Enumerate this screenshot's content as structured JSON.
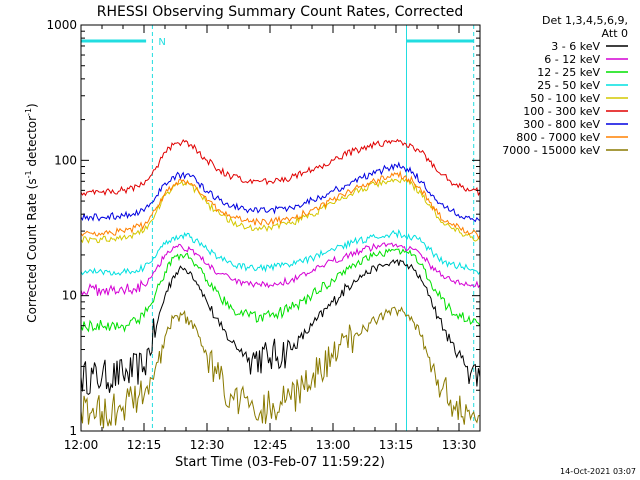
{
  "chart_data": {
    "type": "line",
    "title": "RHESSI Observing Summary Count Rates, Corrected",
    "xlabel": "Start Time (03-Feb-07 11:59:22)",
    "ylabel_main": "Corrected Count Rate (s",
    "ylabel_sup1": "-1",
    "ylabel_mid": " detector",
    "ylabel_sup2": "-1",
    "ylabel_end": ")",
    "yscale": "log",
    "ylim": [
      1,
      1000
    ],
    "xlim": [
      "12:00",
      "13:35"
    ],
    "x_ticks": [
      "12:00",
      "12:15",
      "12:30",
      "12:45",
      "13:00",
      "13:15",
      "13:30"
    ],
    "y_ticks": [
      "1",
      "10",
      "100",
      "1000"
    ],
    "grid": false,
    "legend_header": "Det 1,3,4,5,6,9,",
    "legend_header2": "Att 0",
    "legend_position": "right",
    "annotation_n": "N",
    "timestamp": "14-Oct-2021 03:07",
    "x_minutes": [
      0,
      5,
      10,
      15,
      18,
      20,
      22,
      24,
      26,
      28,
      30,
      33,
      36,
      40,
      45,
      50,
      55,
      60,
      65,
      70,
      73,
      75,
      77,
      79,
      81,
      83,
      85,
      88,
      92,
      95
    ],
    "series": [
      {
        "name": "3 - 6 keV",
        "color": "#000000",
        "values": [
          2.5,
          2.5,
          2.6,
          3,
          6,
          10,
          14,
          16,
          15,
          12,
          9,
          6,
          4.5,
          3.5,
          3.5,
          4,
          6,
          9,
          13,
          16,
          17,
          18,
          17,
          16,
          13,
          10,
          7,
          4.5,
          3,
          2.5
        ]
      },
      {
        "name": "6 - 12 keV",
        "color": "#d400d4",
        "values": [
          11,
          11,
          11,
          12,
          16,
          20,
          23,
          23,
          22,
          20,
          17,
          14.5,
          13,
          12,
          12,
          13,
          15,
          18,
          21,
          23,
          24,
          24,
          23,
          22,
          20,
          17,
          15,
          13,
          12,
          12
        ]
      },
      {
        "name": "12 - 25 keV",
        "color": "#00e000",
        "values": [
          6,
          6,
          6,
          7,
          11,
          15,
          19,
          20,
          19,
          16,
          13,
          10,
          8,
          7,
          7,
          8,
          10,
          13,
          17,
          20,
          21,
          22,
          21,
          20,
          17,
          13,
          10,
          8,
          6.5,
          6
        ]
      },
      {
        "name": "25 - 50 keV",
        "color": "#00e0e0",
        "values": [
          15,
          15,
          15,
          16,
          20,
          24,
          27,
          28,
          27,
          25,
          22,
          19,
          17,
          16,
          16,
          17,
          19,
          22,
          25,
          27,
          28,
          29,
          28,
          27,
          25,
          22,
          19,
          17,
          16,
          15
        ]
      },
      {
        "name": "50 - 100 keV",
        "color": "#d4c800",
        "values": [
          26,
          26,
          27,
          30,
          42,
          55,
          65,
          70,
          66,
          58,
          48,
          40,
          35,
          32,
          32,
          34,
          40,
          48,
          58,
          66,
          70,
          72,
          70,
          66,
          57,
          47,
          38,
          32,
          28,
          26
        ]
      },
      {
        "name": "100 - 300 keV",
        "color": "#e00000",
        "values": [
          58,
          58,
          60,
          66,
          90,
          115,
          130,
          135,
          130,
          115,
          100,
          85,
          75,
          70,
          70,
          74,
          85,
          100,
          118,
          130,
          135,
          137,
          134,
          128,
          115,
          98,
          82,
          70,
          62,
          58
        ]
      },
      {
        "name": "300 - 800 keV",
        "color": "#0000e0",
        "values": [
          38,
          38,
          39,
          42,
          55,
          68,
          76,
          78,
          76,
          68,
          59,
          51,
          46,
          43,
          43,
          45,
          51,
          59,
          70,
          80,
          88,
          92,
          88,
          82,
          70,
          58,
          48,
          42,
          38,
          36
        ]
      },
      {
        "name": "800 - 7000 keV",
        "color": "#ff8000",
        "values": [
          29,
          29,
          30,
          33,
          45,
          57,
          66,
          70,
          67,
          59,
          50,
          43,
          38,
          35,
          35,
          37,
          43,
          51,
          61,
          70,
          76,
          79,
          76,
          70,
          60,
          49,
          40,
          34,
          30,
          28
        ]
      },
      {
        "name": "7000 - 15000 keV",
        "color": "#8a7a00",
        "values": [
          1.4,
          1.4,
          1.5,
          1.8,
          3.2,
          5,
          6.8,
          7.2,
          6.5,
          5,
          3.6,
          2.4,
          1.8,
          1.5,
          1.5,
          1.7,
          2.4,
          3.5,
          5,
          6.5,
          7.5,
          7.8,
          7.5,
          6.5,
          5,
          3.5,
          2.4,
          1.7,
          1.4,
          1.3
        ]
      }
    ]
  }
}
